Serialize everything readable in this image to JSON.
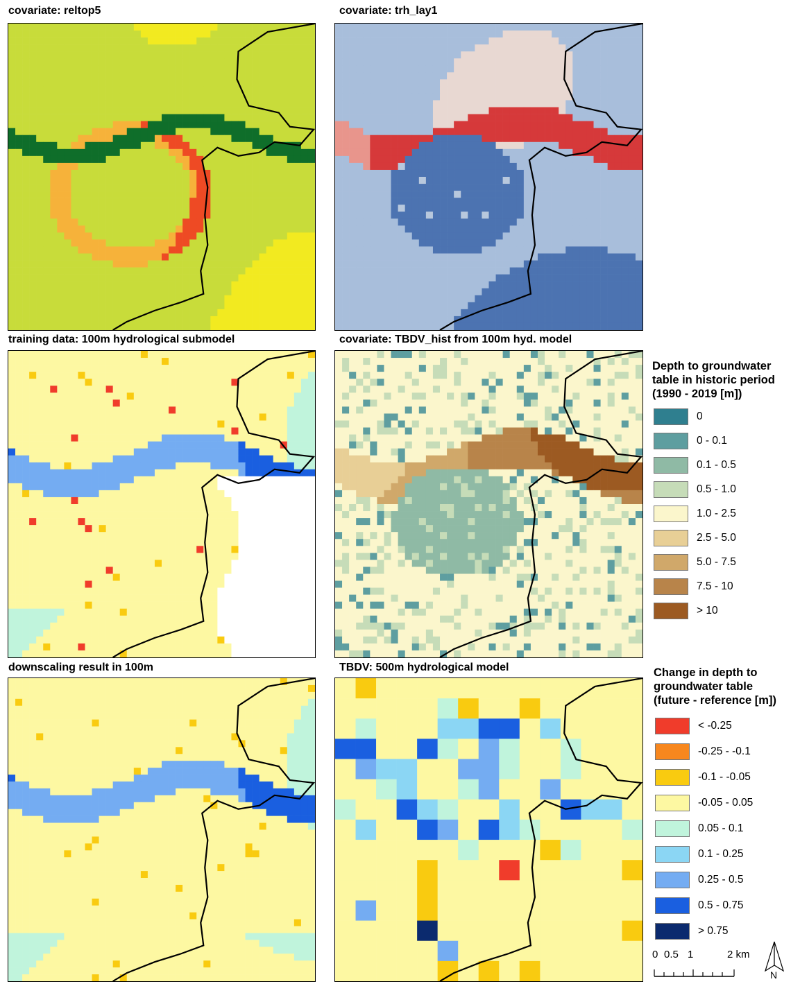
{
  "panels": [
    {
      "id": "reltop5",
      "title": "covariate: reltop5",
      "kind": "reltop"
    },
    {
      "id": "trh_lay1",
      "title": "covariate: trh_lay1",
      "kind": "trh"
    },
    {
      "id": "training",
      "title": "training data: 100m hydrological submodel",
      "kind": "training"
    },
    {
      "id": "tbdv_hist",
      "title": "covariate: TBDV_hist from 100m hyd. model",
      "kind": "hist"
    },
    {
      "id": "downscaling",
      "title": "downscaling result in 100m",
      "kind": "downscale"
    },
    {
      "id": "tbdv_500",
      "title": "TBDV: 500m hydrological model",
      "kind": "coarse"
    }
  ],
  "legend_depth": {
    "title": "Depth to groundwater\ntable in historic period\n(1990 - 2019 [m])",
    "items": [
      {
        "label": "0",
        "color": "#2f7f8f"
      },
      {
        "label": "0 - 0.1",
        "color": "#5e9ea0"
      },
      {
        "label": "0.1 - 0.5",
        "color": "#8fbaa5"
      },
      {
        "label": "0.5 - 1.0",
        "color": "#c6dcb8"
      },
      {
        "label": "1.0 - 2.5",
        "color": "#fbf6cc"
      },
      {
        "label": "2.5 - 5.0",
        "color": "#e8cf96"
      },
      {
        "label": "5.0 - 7.5",
        "color": "#d0a86a"
      },
      {
        "label": "7.5 - 10",
        "color": "#b8844a"
      },
      {
        "label": "> 10",
        "color": "#9c5a22"
      }
    ]
  },
  "legend_change": {
    "title": "Change in depth to\ngroundwater table\n(future - reference [m])",
    "items": [
      {
        "label": "< -0.25",
        "color": "#f03c2b"
      },
      {
        "label": "-0.25 - -0.1",
        "color": "#f7871e"
      },
      {
        "label": "-0.1 - -0.05",
        "color": "#f9cb10"
      },
      {
        "label": "-0.05 - 0.05",
        "color": "#fdf8a2"
      },
      {
        "label": "0.05 - 0.1",
        "color": "#c0f4dc"
      },
      {
        "label": "0.1 - 0.25",
        "color": "#8bd6f4"
      },
      {
        "label": "0.25 - 0.5",
        "color": "#74acf2"
      },
      {
        "label": "0.5 - 0.75",
        "color": "#1a5fe0"
      },
      {
        "label": "> 0.75",
        "color": "#0b2a6e"
      }
    ]
  },
  "scalebar": {
    "labels": [
      "0",
      "0.5",
      "1",
      "2 km"
    ]
  },
  "north_label": "N"
}
